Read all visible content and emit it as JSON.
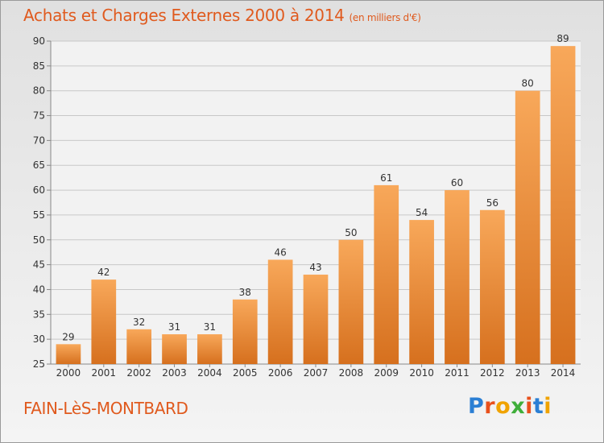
{
  "header": {
    "title": "Achats et Charges Externes 2000 à 2014",
    "unit": "(en milliers d'€)"
  },
  "footer": {
    "commune": "FAIN-LèS-MONTBARD",
    "brand_letters": [
      "P",
      "r",
      "o",
      "x",
      "i",
      "t",
      "i"
    ],
    "brand_colors": [
      "#2b7fd4",
      "#e8501c",
      "#f0a300",
      "#3fae3a",
      "#e8501c",
      "#2b7fd4",
      "#f0a300"
    ]
  },
  "colors": {
    "title": "#e05a1e",
    "bar_light": "#f8a85a",
    "bar_dark": "#d6701e",
    "grid": "#c8c8c8",
    "axis_text": "#333333"
  },
  "chart_data": {
    "type": "bar",
    "categories": [
      "2000",
      "2001",
      "2002",
      "2003",
      "2004",
      "2005",
      "2006",
      "2007",
      "2008",
      "2009",
      "2010",
      "2011",
      "2012",
      "2013",
      "2014"
    ],
    "values": [
      29,
      42,
      32,
      31,
      31,
      38,
      46,
      43,
      50,
      61,
      54,
      60,
      56,
      80,
      89
    ],
    "data_labels": [
      "29",
      "42",
      "32",
      "31",
      "31",
      "38",
      "46",
      "43",
      "50",
      "61",
      "54",
      "60",
      "56",
      "80",
      "89"
    ],
    "ylim": [
      25,
      90
    ],
    "yticks": [
      "25",
      "30",
      "35",
      "40",
      "45",
      "50",
      "55",
      "60",
      "65",
      "70",
      "75",
      "80",
      "85",
      "90"
    ],
    "xlabel": "",
    "ylabel": "",
    "grid": true,
    "legend": "none"
  }
}
